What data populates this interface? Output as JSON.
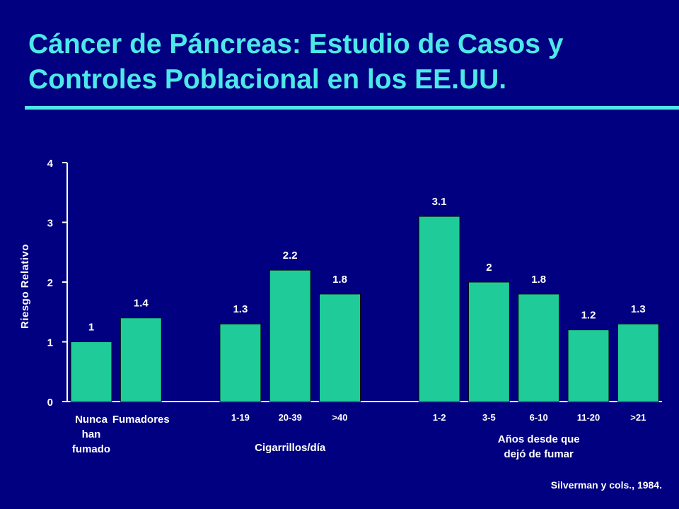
{
  "title_line1": "Cáncer de Páncreas: Estudio de Casos y",
  "title_line2": "Controles Poblacional en los EE.UU.",
  "source": "Silverman y cols., 1984.",
  "colors": {
    "background": "#000080",
    "title": "#4DE8E8",
    "bar": "#1FCC99",
    "text": "#FFFFFF"
  },
  "chart_data": {
    "type": "bar",
    "ylabel": "Riesgo Relativo",
    "ylim": [
      0,
      4
    ],
    "yticks": [
      0,
      1,
      2,
      3,
      4
    ],
    "groups": [
      {
        "label": "",
        "categories": [
          {
            "label": [
              "Nunca",
              "han",
              "fumado"
            ],
            "value": 1,
            "value_label": "1"
          },
          {
            "label": [
              "Fumadores"
            ],
            "value": 1.4,
            "value_label": "1.4"
          }
        ]
      },
      {
        "label": [
          "Cigarrillos/día"
        ],
        "categories": [
          {
            "label": [
              "1-19"
            ],
            "value": 1.3,
            "value_label": "1.3"
          },
          {
            "label": [
              "20-39"
            ],
            "value": 2.2,
            "value_label": "2.2"
          },
          {
            "label": [
              ">40"
            ],
            "value": 1.8,
            "value_label": "1.8"
          }
        ]
      },
      {
        "label": [
          "Años desde que",
          "dejó de fumar"
        ],
        "categories": [
          {
            "label": [
              "1-2"
            ],
            "value": 3.1,
            "value_label": "3.1"
          },
          {
            "label": [
              "3-5"
            ],
            "value": 2,
            "value_label": "2"
          },
          {
            "label": [
              "6-10"
            ],
            "value": 1.8,
            "value_label": "1.8"
          },
          {
            "label": [
              "11-20"
            ],
            "value": 1.2,
            "value_label": "1.2"
          },
          {
            "label": [
              ">21"
            ],
            "value": 1.3,
            "value_label": "1.3"
          }
        ]
      }
    ]
  }
}
